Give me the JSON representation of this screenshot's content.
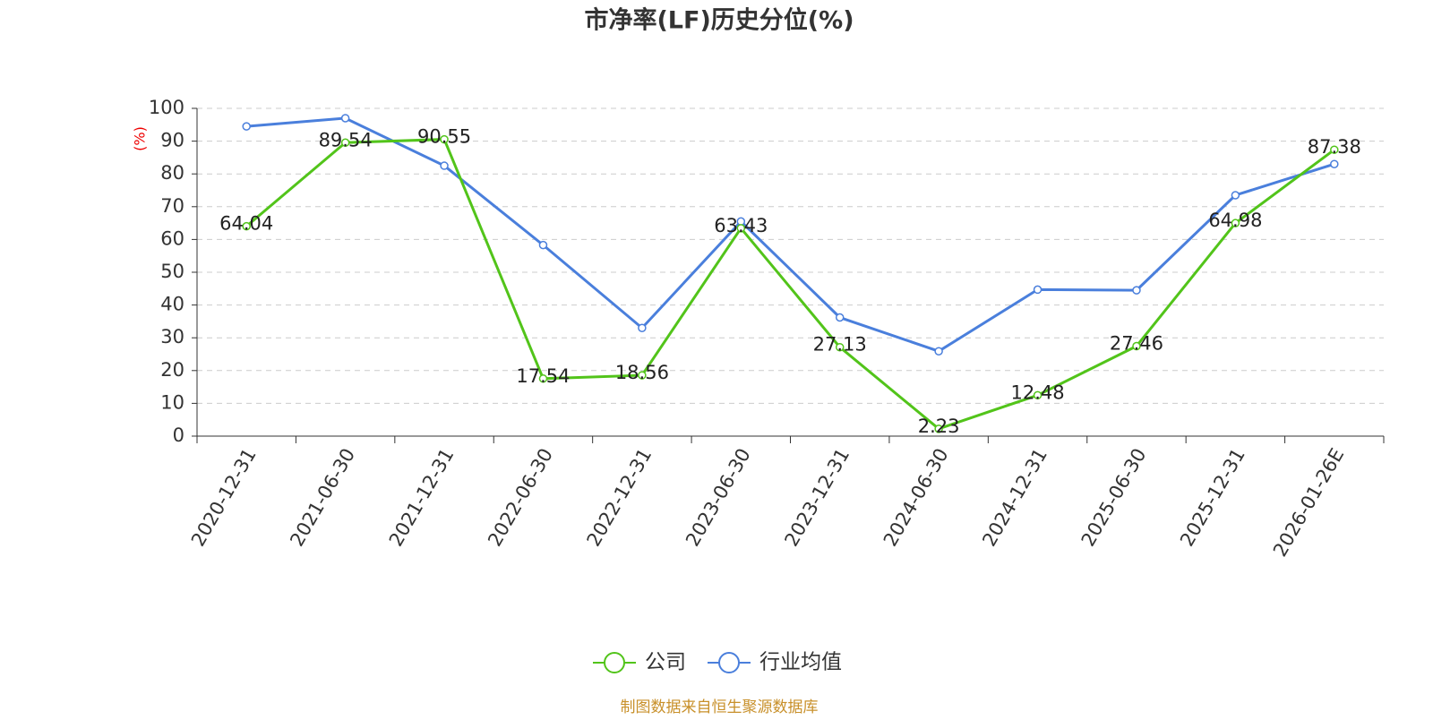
{
  "chart_data": {
    "type": "line",
    "title": "市净率(LF)历史分位(%)",
    "y_label": "(%)",
    "footer": "制图数据来自恒生聚源数据库",
    "categories": [
      "2020-12-31",
      "2021-06-30",
      "2021-12-31",
      "2022-06-30",
      "2022-12-31",
      "2023-06-30",
      "2023-12-31",
      "2024-06-30",
      "2024-12-31",
      "2025-06-30",
      "2025-12-31",
      "2026-01-26E"
    ],
    "series": [
      {
        "name": "公司",
        "color": "#52c41a",
        "values": [
          64.04,
          89.54,
          90.55,
          17.54,
          18.56,
          63.43,
          27.13,
          2.23,
          12.48,
          27.46,
          64.98,
          87.38
        ],
        "show_labels": true
      },
      {
        "name": "行业均值",
        "color": "#4a7fdc",
        "values": [
          94.5,
          97,
          82.5,
          58.3,
          33,
          65.5,
          36.2,
          25.9,
          44.7,
          44.5,
          73.5,
          83
        ],
        "show_labels": false
      }
    ],
    "ylim": [
      0,
      100
    ],
    "yticks": [
      0,
      10,
      20,
      30,
      40,
      50,
      60,
      70,
      80,
      90,
      100
    ],
    "grid": true,
    "legend": "bottom"
  }
}
